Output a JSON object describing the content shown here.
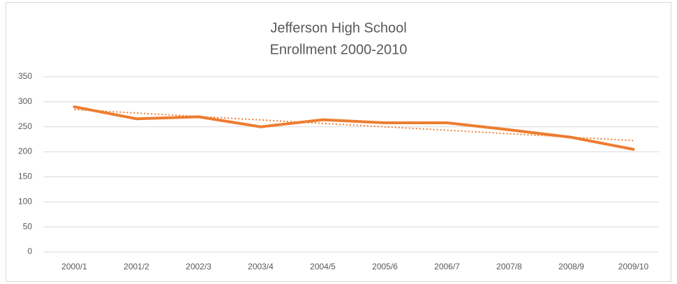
{
  "chart_data": {
    "type": "line",
    "title": [
      "Jefferson High School",
      "Enrollment 2000-2010"
    ],
    "categories": [
      "2000/1",
      "2001/2",
      "2002/3",
      "2003/4",
      "2004/5",
      "2005/6",
      "2006/7",
      "2007/8",
      "2008/9",
      "2009/10"
    ],
    "values": [
      290,
      266,
      270,
      250,
      264,
      258,
      258,
      244,
      229,
      205
    ],
    "color": "#ed7d31",
    "trendline": "linear",
    "ylim": [
      0,
      350
    ],
    "yticks": [
      0,
      50,
      100,
      150,
      200,
      250,
      300,
      350
    ],
    "grid": true
  }
}
